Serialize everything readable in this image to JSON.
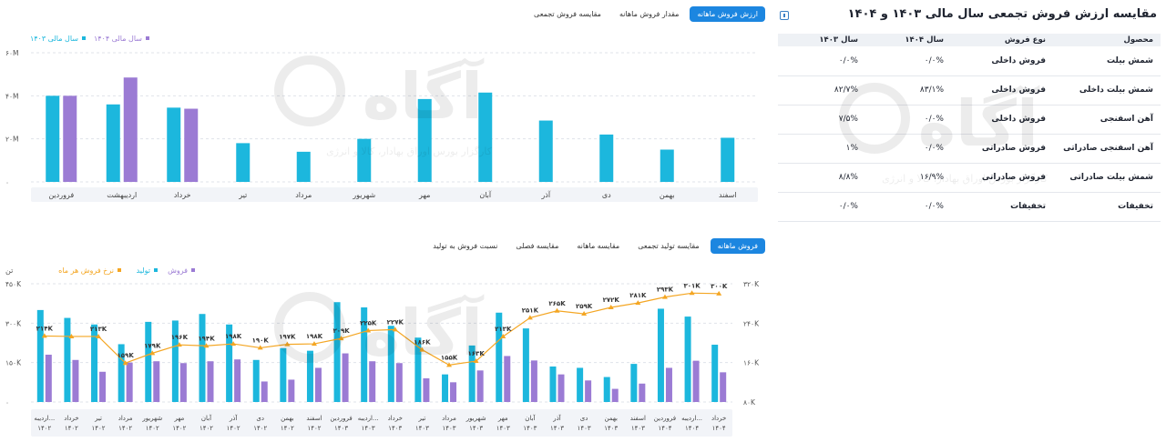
{
  "top_tabs": [
    {
      "label": "ارزش فروش ماهانه",
      "active": true
    },
    {
      "label": "مقدار فروش ماهانه",
      "active": false
    },
    {
      "label": "مقایسه فروش تجمعی",
      "active": false
    }
  ],
  "bottom_tabs": [
    {
      "label": "فروش ماهانه",
      "active": true
    },
    {
      "label": "مقایسه تولید تجمعی",
      "active": false
    },
    {
      "label": "مقایسه ماهانه",
      "active": false
    },
    {
      "label": "مقایسه فصلی",
      "active": false
    },
    {
      "label": "نسبت فروش به تولید",
      "active": false
    }
  ],
  "right_panel": {
    "title": "مقایسه ارزش فروش تجمعی سال مالی ۱۴۰۳ و ۱۴۰۴",
    "columns": [
      "محصول",
      "نوع فروش",
      "سال ۱۴۰۴",
      "سال ۱۴۰۳"
    ],
    "rows": [
      [
        "شمش بیلت",
        "فروش داخلی",
        "۰/۰%",
        "۰/۰%"
      ],
      [
        "شمش بیلت داخلی",
        "فروش داخلی",
        "۸۳/۱%",
        "۸۲/۷%"
      ],
      [
        "آهن اسفنجی",
        "فروش داخلی",
        "۰/۰%",
        "۷/۵%"
      ],
      [
        "آهن اسفنجی صادراتی",
        "فروش صادراتی",
        "۰/۰%",
        "۱%"
      ],
      [
        "شمش بیلت صادراتی",
        "فروش صادراتی",
        "۱۶/۹%",
        "۸/۸%"
      ],
      [
        "تخفیفات",
        "تخفیفات",
        "۰/۰%",
        "۰/۰%"
      ]
    ]
  },
  "watermark": {
    "brand": "آگاه",
    "tagline": "کارگزار بورس اوراق بهادار، کالا و انرژی"
  },
  "colors": {
    "teal": "#1cb7dd",
    "purple": "#9b7bd4",
    "orange": "#f4a623",
    "accent": "#1c86e0"
  },
  "top_chart_data": {
    "type": "bar",
    "legend": [
      "سال مالی ۱۴۰۳",
      "سال مالی ۱۴۰۴"
    ],
    "y_ticks": [
      "۰",
      "۲۰M",
      "۴۰M",
      "۶۰M"
    ],
    "ylim": [
      0,
      60
    ],
    "categories": [
      "فروردین",
      "اردیبهشت",
      "خرداد",
      "تیر",
      "مرداد",
      "شهریور",
      "مهر",
      "آبان",
      "آذر",
      "دی",
      "بهمن",
      "اسفند"
    ],
    "series": [
      {
        "name": "سال مالی ۱۴۰۳",
        "color": "teal",
        "values": [
          40,
          36,
          34.5,
          18,
          14,
          20,
          38.5,
          41.5,
          28.5,
          22,
          15,
          20.5
        ]
      },
      {
        "name": "سال مالی ۱۴۰۴",
        "color": "purple",
        "values": [
          40,
          48.5,
          34,
          null,
          null,
          null,
          null,
          null,
          null,
          null,
          null,
          null
        ]
      }
    ]
  },
  "bottom_chart_data": {
    "type": "bar",
    "legend": [
      "فروش",
      "تولید",
      "نرخ فروش هر ماه"
    ],
    "left_axis_unit": "تن",
    "left_ticks": [
      "۰",
      "۱۵۰K",
      "۳۰۰K",
      "۴۵۰K"
    ],
    "right_ticks": [
      "۸۰K",
      "۱۶۰K",
      "۲۴۰K",
      "۳۲۰K"
    ],
    "left_lim": [
      0,
      450
    ],
    "right_lim": [
      80,
      320
    ],
    "categories": [
      [
        "اردیبه...",
        "۱۴۰۲"
      ],
      [
        "خرداد",
        "۱۴۰۲"
      ],
      [
        "تیر",
        "۱۴۰۲"
      ],
      [
        "مرداد",
        "۱۴۰۲"
      ],
      [
        "شهریور",
        "۱۴۰۲"
      ],
      [
        "مهر",
        "۱۴۰۲"
      ],
      [
        "آبان",
        "۱۴۰۲"
      ],
      [
        "آذر",
        "۱۴۰۲"
      ],
      [
        "دی",
        "۱۴۰۲"
      ],
      [
        "بهمن",
        "۱۴۰۲"
      ],
      [
        "اسفند",
        "۱۴۰۲"
      ],
      [
        "فروردین",
        "۱۴۰۳"
      ],
      [
        "اردیبه...",
        "۱۴۰۳"
      ],
      [
        "خرداد",
        "۱۴۰۳"
      ],
      [
        "تیر",
        "۱۴۰۳"
      ],
      [
        "مرداد",
        "۱۴۰۳"
      ],
      [
        "شهریور",
        "۱۴۰۳"
      ],
      [
        "مهر",
        "۱۴۰۳"
      ],
      [
        "آبان",
        "۱۴۰۳"
      ],
      [
        "آذر",
        "۱۴۰۳"
      ],
      [
        "دی",
        "۱۴۰۳"
      ],
      [
        "بهمن",
        "۱۴۰۳"
      ],
      [
        "اسفند",
        "۱۴۰۳"
      ],
      [
        "فروردین",
        "۱۴۰۴"
      ],
      [
        "اردیبه...",
        "۱۴۰۴"
      ],
      [
        "خرداد",
        "۱۴۰۴"
      ]
    ],
    "production": [
      350,
      320,
      295,
      220,
      305,
      310,
      335,
      295,
      160,
      205,
      195,
      380,
      360,
      290,
      245,
      105,
      215,
      340,
      280,
      135,
      130,
      95,
      145,
      355,
      325,
      218
    ],
    "sales": [
      180,
      160,
      115,
      150,
      155,
      148,
      155,
      162,
      78,
      85,
      130,
      185,
      155,
      148,
      90,
      75,
      120,
      175,
      158,
      105,
      82,
      50,
      70,
      130,
      157,
      113
    ],
    "rate": [
      214,
      213,
      213,
      159,
      179,
      196,
      194,
      198,
      190,
      197,
      198,
      209,
      225,
      227,
      186,
      155,
      163,
      213,
      251,
      265,
      259,
      272,
      281,
      293,
      301,
      300
    ],
    "rate_labels": [
      "۲۱۴K",
      "",
      "۲۱۳K",
      "۱۵۹K",
      "۱۷۹K",
      "۱۹۶K",
      "۱۹۴K",
      "۱۹۸K",
      "۱۹۰K",
      "۱۹۷K",
      "۱۹۸K",
      "۲۰۹K",
      "۲۲۵K",
      "۲۲۷K",
      "۱۸۶K",
      "۱۵۵K",
      "۱۶۳K",
      "۲۱۳K",
      "۲۵۱K",
      "۲۶۵K",
      "۲۵۹K",
      "۲۷۲K",
      "۲۸۱K",
      "۲۹۳K",
      "۳۰۱K",
      "۳۰۰K"
    ]
  }
}
